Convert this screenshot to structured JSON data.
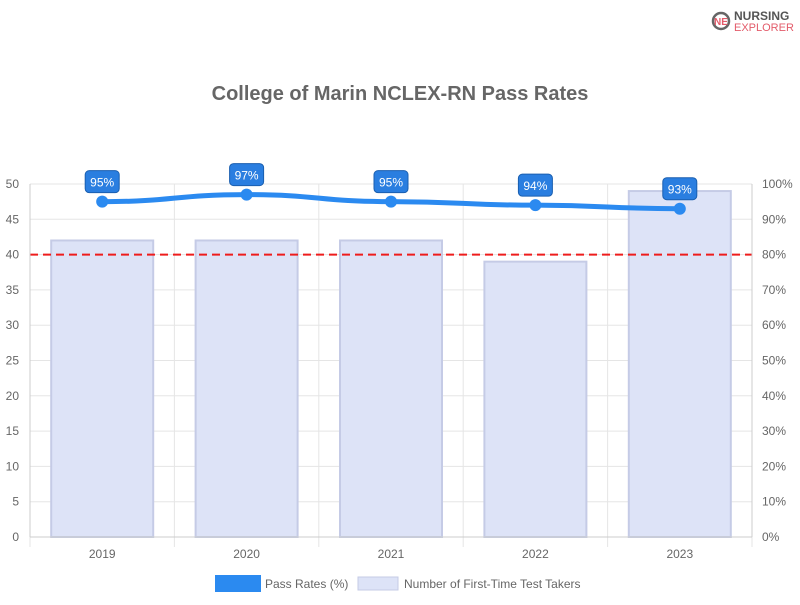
{
  "logo": {
    "line1": "NURSING",
    "line2": "EXPLORER"
  },
  "chart_data": {
    "type": "bar",
    "title": "College of Marin NCLEX-RN Pass Rates",
    "categories": [
      "2019",
      "2020",
      "2021",
      "2022",
      "2023"
    ],
    "series": [
      {
        "name": "Number of First-Time Test Takers",
        "type": "bar",
        "axis": "left",
        "values": [
          42,
          42,
          42,
          39,
          49
        ],
        "color": "#dde3f7",
        "border": "#c5cbe6"
      },
      {
        "name": "Pass Rates (%)",
        "type": "line",
        "axis": "right",
        "values": [
          95,
          97,
          95,
          94,
          93
        ],
        "labels": [
          "95%",
          "97%",
          "95%",
          "94%",
          "93%"
        ],
        "color": "#2b8af0"
      }
    ],
    "left_axis": {
      "range": [
        0,
        50
      ],
      "ticks": [
        "0",
        "5",
        "10",
        "15",
        "20",
        "25",
        "30",
        "35",
        "40",
        "45",
        "50"
      ]
    },
    "right_axis": {
      "range": [
        0,
        100
      ],
      "ticks": [
        "0%",
        "10%",
        "20%",
        "30%",
        "40%",
        "50%",
        "60%",
        "70%",
        "80%",
        "90%",
        "100%"
      ]
    },
    "reference_line": {
      "value": 80,
      "axis": "right",
      "color": "#ee1c1c",
      "style": "dashed"
    },
    "grid": true,
    "legend": "bottom"
  }
}
